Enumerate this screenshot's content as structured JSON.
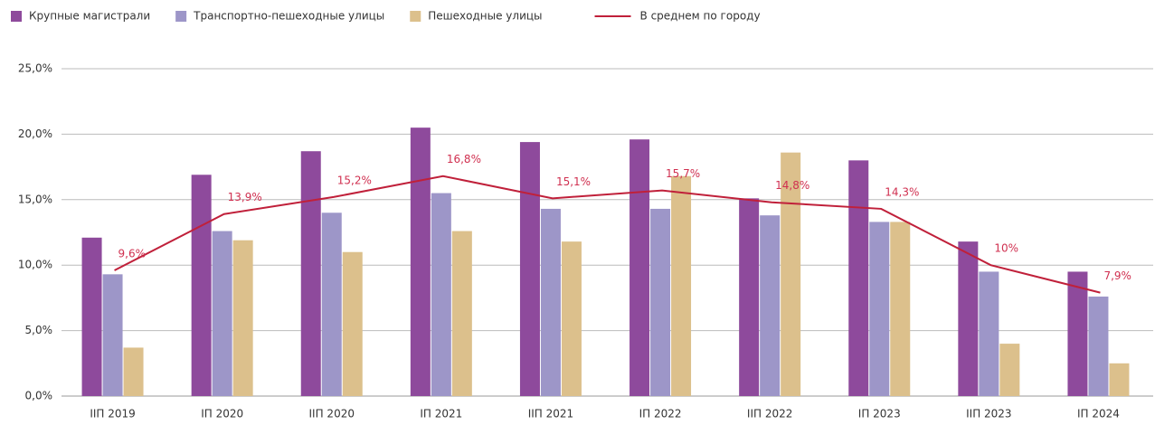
{
  "chart_data": {
    "type": "bar-line",
    "categories": [
      "IIП 2019",
      "IП 2020",
      "IIП 2020",
      "IП 2021",
      "IIП 2021",
      "IП 2022",
      "IIП 2022",
      "IП 2023",
      "IIП 2023",
      "IП 2024"
    ],
    "series": [
      {
        "name": "Крупные магистрали",
        "type": "bar",
        "color": "#8e4a9c",
        "values": [
          12.1,
          16.9,
          18.7,
          20.5,
          19.4,
          19.6,
          15.1,
          18.0,
          11.8,
          9.5
        ]
      },
      {
        "name": "Транспортно-пешеходные улицы",
        "type": "bar",
        "color": "#9d96c8",
        "values": [
          9.3,
          12.6,
          14.0,
          15.5,
          14.3,
          14.3,
          13.8,
          13.3,
          9.5,
          7.6
        ]
      },
      {
        "name": "Пешеходные улицы",
        "type": "bar",
        "color": "#dcc08c",
        "values": [
          3.7,
          11.9,
          11.0,
          12.6,
          11.8,
          16.8,
          18.6,
          13.3,
          4.0,
          2.5
        ]
      },
      {
        "name": "В среднем по городу",
        "type": "line",
        "color": "#c0203a",
        "values": [
          9.6,
          13.9,
          15.2,
          16.8,
          15.1,
          15.7,
          14.8,
          14.3,
          10,
          7.9
        ],
        "value_labels": [
          "9,6%",
          "13,9%",
          "15,2%",
          "16,8%",
          "15,1%",
          "15,7%",
          "14,8%",
          "14,3%",
          "10%",
          "7,9%"
        ]
      }
    ],
    "ylim": [
      0,
      25
    ],
    "yticks": [
      {
        "value": 0,
        "label": "0,0%"
      },
      {
        "value": 5,
        "label": "5,0%"
      },
      {
        "value": 10,
        "label": "10,0%"
      },
      {
        "value": 15,
        "label": "15,0%"
      },
      {
        "value": 20,
        "label": "20,0%"
      },
      {
        "value": 25,
        "label": "25,0%"
      }
    ],
    "grid": true,
    "legend": "top"
  }
}
